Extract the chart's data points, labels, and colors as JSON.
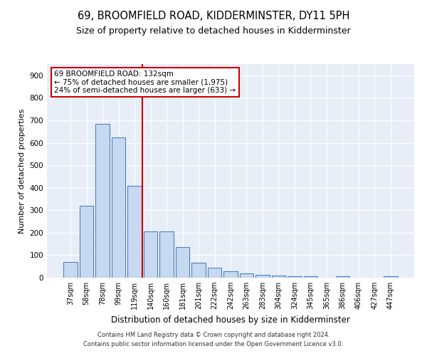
{
  "title": "69, BROOMFIELD ROAD, KIDDERMINSTER, DY11 5PH",
  "subtitle": "Size of property relative to detached houses in Kidderminster",
  "xlabel": "Distribution of detached houses by size in Kidderminster",
  "ylabel": "Number of detached properties",
  "categories": [
    "37sqm",
    "58sqm",
    "78sqm",
    "99sqm",
    "119sqm",
    "140sqm",
    "160sqm",
    "181sqm",
    "201sqm",
    "222sqm",
    "242sqm",
    "263sqm",
    "283sqm",
    "304sqm",
    "324sqm",
    "345sqm",
    "365sqm",
    "386sqm",
    "406sqm",
    "427sqm",
    "447sqm"
  ],
  "values": [
    70,
    320,
    685,
    625,
    410,
    205,
    205,
    135,
    67,
    45,
    30,
    20,
    12,
    10,
    5,
    5,
    0,
    5,
    0,
    0,
    5
  ],
  "bar_color": "#c6d9f0",
  "bar_edge_color": "#4f81bd",
  "vline_x_index": 4,
  "vline_color": "#cc0000",
  "annotation_text": "69 BROOMFIELD ROAD: 132sqm\n← 75% of detached houses are smaller (1,975)\n24% of semi-detached houses are larger (633) →",
  "annotation_box_color": "#ffffff",
  "annotation_box_edge": "#cc0000",
  "ylim": [
    0,
    950
  ],
  "yticks": [
    0,
    100,
    200,
    300,
    400,
    500,
    600,
    700,
    800,
    900
  ],
  "footer": "Contains HM Land Registry data © Crown copyright and database right 2024.\nContains public sector information licensed under the Open Government Licence v3.0.",
  "bg_color": "#e8eef8",
  "title_fontsize": 10.5,
  "subtitle_fontsize": 9,
  "xlabel_fontsize": 8.5,
  "ylabel_fontsize": 8
}
